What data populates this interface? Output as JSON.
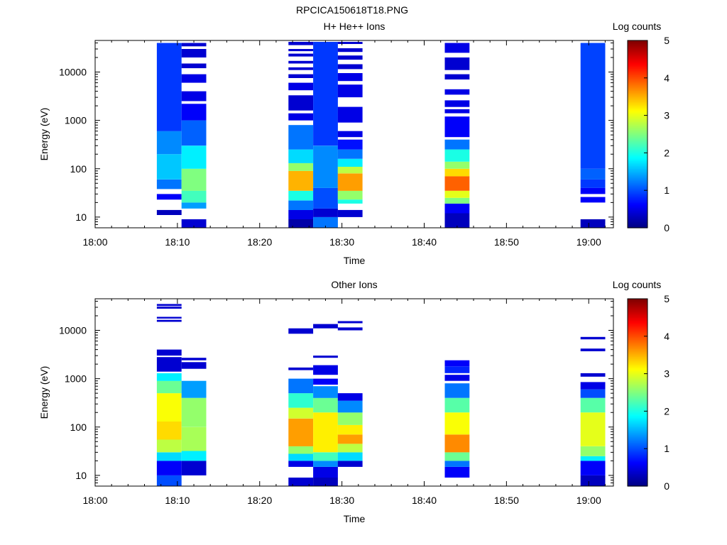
{
  "figure_title": "RPCICA150618T18.PNG",
  "chart_data": [
    {
      "type": "heatmap",
      "title": "H+ He++ Ions",
      "xlabel": "Time",
      "ylabel": "Energy (eV)",
      "x_ticks": [
        "18:00",
        "18:10",
        "18:20",
        "18:30",
        "18:40",
        "18:50",
        "19:00"
      ],
      "xlim": [
        "18:00",
        "19:03"
      ],
      "y_scale": "log",
      "y_ticks": [
        "10",
        "100",
        "1000",
        "10000"
      ],
      "ylim": [
        6,
        45000
      ],
      "colorbar": {
        "label": "Log counts",
        "ticks": [
          "0",
          "1",
          "2",
          "3",
          "4",
          "5"
        ],
        "range": [
          0,
          5
        ]
      },
      "columns": [
        {
          "t_start": "18:07:30",
          "t_end": "18:10:30",
          "segments": [
            [
              11,
              14,
              0.3
            ],
            [
              23,
              30,
              0.6
            ],
            [
              38,
              60,
              1.2
            ],
            [
              60,
              200,
              1.6
            ],
            [
              200,
              600,
              1.3
            ],
            [
              600,
              40000,
              0.9
            ]
          ]
        },
        {
          "t_start": "18:10:30",
          "t_end": "18:13:30",
          "segments": [
            [
              6,
              9,
              0.4
            ],
            [
              15,
              20,
              1.4
            ],
            [
              20,
              35,
              2.2
            ],
            [
              35,
              100,
              2.5
            ],
            [
              100,
              300,
              1.8
            ],
            [
              300,
              1000,
              1.1
            ],
            [
              1000,
              2200,
              0.6
            ],
            [
              2500,
              4000,
              0.5
            ],
            [
              6000,
              9000,
              0.5
            ],
            [
              12000,
              15000,
              0.4
            ],
            [
              20000,
              30000,
              0.4
            ],
            [
              34000,
              40000,
              0.4
            ]
          ]
        },
        {
          "t_start": "18:23:30",
          "t_end": "18:26:30",
          "segments": [
            [
              6,
              9,
              0.2
            ],
            [
              9,
              14,
              0.5
            ],
            [
              14,
              22,
              1.2
            ],
            [
              22,
              35,
              2.0
            ],
            [
              35,
              90,
              3.5
            ],
            [
              90,
              130,
              2.6
            ],
            [
              130,
              250,
              1.7
            ],
            [
              250,
              800,
              1.2
            ],
            [
              1000,
              1400,
              0.5
            ],
            [
              1600,
              3300,
              0.4
            ],
            [
              4200,
              6000,
              0.5
            ],
            [
              7500,
              9000,
              0.4
            ],
            [
              11000,
              12500,
              0.4
            ],
            [
              15000,
              17000,
              0.4
            ],
            [
              21000,
              24000,
              0.4
            ],
            [
              27000,
              30000,
              0.4
            ],
            [
              36000,
              42000,
              0.4
            ]
          ]
        },
        {
          "t_start": "18:26:30",
          "t_end": "18:29:30",
          "segments": [
            [
              6,
              10,
              1.2
            ],
            [
              10,
              15,
              0.4
            ],
            [
              15,
              40,
              1.0
            ],
            [
              40,
              300,
              1.3
            ],
            [
              300,
              42000,
              0.9
            ]
          ]
        },
        {
          "t_start": "18:29:30",
          "t_end": "18:32:30",
          "segments": [
            [
              10,
              14,
              0.4
            ],
            [
              19,
              23,
              2.0
            ],
            [
              23,
              35,
              2.6
            ],
            [
              35,
              80,
              3.6
            ],
            [
              80,
              110,
              2.8
            ],
            [
              110,
              160,
              1.8
            ],
            [
              160,
              250,
              1.2
            ],
            [
              250,
              400,
              0.7
            ],
            [
              450,
              600,
              0.5
            ],
            [
              900,
              1900,
              0.5
            ],
            [
              3000,
              5500,
              0.5
            ],
            [
              6500,
              9500,
              0.5
            ],
            [
              11500,
              14500,
              0.4
            ],
            [
              18000,
              22000,
              0.4
            ],
            [
              26000,
              31000,
              0.4
            ],
            [
              38000,
              42000,
              0.4
            ]
          ]
        },
        {
          "t_start": "18:42:30",
          "t_end": "18:45:30",
          "segments": [
            [
              6,
              12,
              0.3
            ],
            [
              12,
              19,
              0.6
            ],
            [
              19,
              25,
              2.5
            ],
            [
              25,
              35,
              3.0
            ],
            [
              35,
              70,
              3.9
            ],
            [
              70,
              100,
              3.3
            ],
            [
              100,
              140,
              2.6
            ],
            [
              140,
              250,
              2.0
            ],
            [
              250,
              400,
              1.2
            ],
            [
              450,
              1200,
              0.6
            ],
            [
              1400,
              1700,
              0.5
            ],
            [
              1900,
              2600,
              0.5
            ],
            [
              3400,
              4400,
              0.5
            ],
            [
              7000,
              9000,
              0.4
            ],
            [
              11000,
              20000,
              0.4
            ],
            [
              25000,
              40000,
              0.5
            ]
          ]
        },
        {
          "t_start": "18:59:00",
          "t_end": "19:02:00",
          "segments": [
            [
              6,
              9,
              0.3
            ],
            [
              20,
              26,
              0.6
            ],
            [
              30,
              40,
              0.6
            ],
            [
              40,
              60,
              0.9
            ],
            [
              60,
              100,
              1.1
            ],
            [
              100,
              40000,
              0.95
            ]
          ]
        }
      ]
    },
    {
      "type": "heatmap",
      "title": "Other Ions",
      "xlabel": "Time",
      "ylabel": "Energy (eV)",
      "x_ticks": [
        "18:00",
        "18:10",
        "18:20",
        "18:30",
        "18:40",
        "18:50",
        "19:00"
      ],
      "xlim": [
        "18:00",
        "19:03"
      ],
      "y_scale": "log",
      "y_ticks": [
        "10",
        "100",
        "1000",
        "10000"
      ],
      "ylim": [
        6,
        45000
      ],
      "colorbar": {
        "label": "Log counts",
        "ticks": [
          "0",
          "1",
          "2",
          "3",
          "4",
          "5"
        ],
        "range": [
          0,
          5
        ]
      },
      "columns": [
        {
          "t_start": "18:07:30",
          "t_end": "18:10:30",
          "segments": [
            [
              6,
              10,
              1.0
            ],
            [
              10,
              20,
              0.6
            ],
            [
              20,
              30,
              1.7
            ],
            [
              30,
              55,
              2.8
            ],
            [
              55,
              130,
              3.3
            ],
            [
              130,
              500,
              3.1
            ],
            [
              500,
              900,
              2.4
            ],
            [
              900,
              1300,
              1.8
            ],
            [
              1400,
              2800,
              0.4
            ],
            [
              3000,
              4000,
              0.4
            ],
            [
              15000,
              16500,
              0.4
            ],
            [
              17500,
              19000,
              0.4
            ],
            [
              28000,
              31000,
              0.4
            ],
            [
              32000,
              35000,
              0.4
            ]
          ]
        },
        {
          "t_start": "18:10:30",
          "t_end": "18:13:30",
          "segments": [
            [
              10,
              20,
              0.4
            ],
            [
              20,
              32,
              1.8
            ],
            [
              32,
              100,
              2.7
            ],
            [
              100,
              400,
              2.6
            ],
            [
              400,
              900,
              1.4
            ],
            [
              1600,
              2200,
              0.4
            ],
            [
              2400,
              2700,
              0.4
            ]
          ]
        },
        {
          "t_start": "18:23:30",
          "t_end": "18:26:30",
          "segments": [
            [
              6,
              9,
              0.4
            ],
            [
              15,
              20,
              0.5
            ],
            [
              20,
              28,
              1.7
            ],
            [
              28,
              40,
              2.6
            ],
            [
              40,
              150,
              3.6
            ],
            [
              150,
              250,
              2.9
            ],
            [
              250,
              500,
              2.1
            ],
            [
              500,
              1000,
              1.2
            ],
            [
              1500,
              1700,
              0.4
            ],
            [
              8500,
              11000,
              0.4
            ]
          ]
        },
        {
          "t_start": "18:26:30",
          "t_end": "18:29:30",
          "segments": [
            [
              6,
              9,
              0.3
            ],
            [
              9,
              15,
              0.5
            ],
            [
              15,
              20,
              1.3
            ],
            [
              20,
              30,
              2.2
            ],
            [
              30,
              200,
              3.2
            ],
            [
              200,
              400,
              2.4
            ],
            [
              400,
              700,
              1.3
            ],
            [
              750,
              1000,
              0.6
            ],
            [
              1200,
              1900,
              0.5
            ],
            [
              2700,
              3000,
              0.4
            ],
            [
              11000,
              13500,
              0.4
            ]
          ]
        },
        {
          "t_start": "18:29:30",
          "t_end": "18:32:30",
          "segments": [
            [
              15,
              20,
              0.4
            ],
            [
              20,
              30,
              1.7
            ],
            [
              30,
              45,
              2.8
            ],
            [
              45,
              70,
              3.6
            ],
            [
              70,
              110,
              3.2
            ],
            [
              110,
              200,
              2.6
            ],
            [
              200,
              350,
              1.3
            ],
            [
              350,
              500,
              0.5
            ],
            [
              10000,
              11500,
              0.4
            ],
            [
              14000,
              15500,
              0.4
            ]
          ]
        },
        {
          "t_start": "18:42:30",
          "t_end": "18:45:30",
          "segments": [
            [
              9,
              15,
              0.6
            ],
            [
              15,
              20,
              1.2
            ],
            [
              20,
              30,
              2.4
            ],
            [
              30,
              70,
              3.7
            ],
            [
              70,
              200,
              3.1
            ],
            [
              200,
              400,
              2.3
            ],
            [
              400,
              800,
              1.2
            ],
            [
              900,
              1200,
              0.5
            ],
            [
              1300,
              1800,
              0.8
            ],
            [
              1800,
              2400,
              0.6
            ]
          ]
        },
        {
          "t_start": "18:59:00",
          "t_end": "19:02:00",
          "segments": [
            [
              6,
              10,
              0.3
            ],
            [
              10,
              20,
              0.6
            ],
            [
              20,
              25,
              1.8
            ],
            [
              25,
              40,
              2.6
            ],
            [
              40,
              200,
              3.0
            ],
            [
              200,
              400,
              2.3
            ],
            [
              400,
              600,
              1.0
            ],
            [
              600,
              850,
              0.5
            ],
            [
              1100,
              1300,
              0.4
            ],
            [
              3700,
              4200,
              0.4
            ],
            [
              6500,
              7300,
              0.4
            ]
          ]
        }
      ]
    }
  ]
}
